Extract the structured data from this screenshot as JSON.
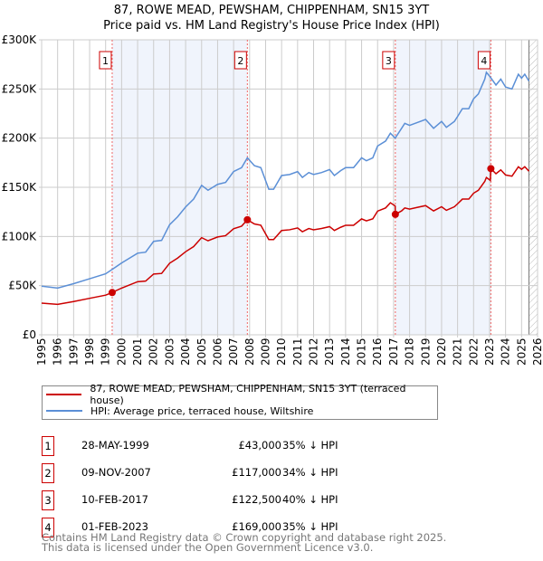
{
  "title": "87, ROWE MEAD, PEWSHAM, CHIPPENHAM, SN15 3YT",
  "subtitle": "Price paid vs. HM Land Registry's House Price Index (HPI)",
  "chart_data": {
    "type": "line",
    "xlim": [
      1995,
      2026
    ],
    "ylim": [
      0,
      300000
    ],
    "grid": true,
    "yticks": [
      0,
      50000,
      100000,
      150000,
      200000,
      250000,
      300000
    ],
    "ytick_labels": [
      "£0",
      "£50K",
      "£100K",
      "£150K",
      "£200K",
      "£250K",
      "£300K"
    ],
    "xticks": [
      1995,
      1996,
      1997,
      1998,
      1999,
      2000,
      2001,
      2002,
      2003,
      2004,
      2005,
      2006,
      2007,
      2008,
      2009,
      2010,
      2011,
      2012,
      2013,
      2014,
      2015,
      2016,
      2017,
      2018,
      2019,
      2020,
      2021,
      2022,
      2023,
      2024,
      2025,
      2026
    ],
    "forecast_start": 2025.46,
    "shaded_ranges": [
      [
        1999.41,
        2007.86
      ],
      [
        2017.11,
        2023.08
      ]
    ],
    "series": [
      {
        "name": "87, ROWE MEAD, PEWSHAM, CHIPPENHAM, SN15 3YT (terraced house)",
        "color": "#cc0000",
        "points": [
          [
            1995,
            32.2
          ],
          [
            1996,
            30.9
          ],
          [
            1997,
            33.8
          ],
          [
            1998,
            37.1
          ],
          [
            1999,
            40.3
          ],
          [
            1999.41,
            43
          ],
          [
            2000,
            47.5
          ],
          [
            2001,
            54
          ],
          [
            2001.5,
            54.6
          ],
          [
            2002,
            61.8
          ],
          [
            2002.5,
            62.4
          ],
          [
            2003,
            72.8
          ],
          [
            2003.5,
            78
          ],
          [
            2004,
            84.5
          ],
          [
            2004.5,
            89.7
          ],
          [
            2005,
            98.8
          ],
          [
            2005.4,
            95.6
          ],
          [
            2006,
            99.5
          ],
          [
            2006.5,
            100.8
          ],
          [
            2007,
            107.9
          ],
          [
            2007.5,
            110.5
          ],
          [
            2007.86,
            117
          ],
          [
            2008.3,
            112.7
          ],
          [
            2008.7,
            111.4
          ],
          [
            2009.2,
            96.9
          ],
          [
            2009.5,
            96.9
          ],
          [
            2010,
            106.1
          ],
          [
            2010.5,
            106.8
          ],
          [
            2011,
            108.7
          ],
          [
            2011.3,
            104.8
          ],
          [
            2011.7,
            108.1
          ],
          [
            2012,
            106.8
          ],
          [
            2012.5,
            108.1
          ],
          [
            2013,
            110
          ],
          [
            2013.3,
            106.1
          ],
          [
            2013.7,
            109.4
          ],
          [
            2014,
            111.4
          ],
          [
            2014.5,
            111.4
          ],
          [
            2015,
            117.9
          ],
          [
            2015.3,
            115.9
          ],
          [
            2015.7,
            117.9
          ],
          [
            2016,
            125.8
          ],
          [
            2016.5,
            129
          ],
          [
            2016.8,
            134.3
          ],
          [
            2017.1,
            131
          ],
          [
            2017.11,
            122.5
          ],
          [
            2017.5,
            126
          ],
          [
            2017.7,
            129
          ],
          [
            2018,
            127.8
          ],
          [
            2018.5,
            129.6
          ],
          [
            2019,
            131.4
          ],
          [
            2019.5,
            126
          ],
          [
            2020,
            130.2
          ],
          [
            2020.3,
            126.6
          ],
          [
            2020.8,
            130.2
          ],
          [
            2021,
            133.2
          ],
          [
            2021.3,
            138
          ],
          [
            2021.7,
            138
          ],
          [
            2022,
            144
          ],
          [
            2022.3,
            147
          ],
          [
            2022.7,
            156
          ],
          [
            2022.8,
            160
          ],
          [
            2023.05,
            157
          ],
          [
            2023.08,
            169
          ],
          [
            2023.4,
            163.8
          ],
          [
            2023.7,
            167.7
          ],
          [
            2024,
            162.5
          ],
          [
            2024.4,
            161.3
          ],
          [
            2024.8,
            170.9
          ],
          [
            2025,
            168.3
          ],
          [
            2025.2,
            170.9
          ],
          [
            2025.46,
            166.4
          ]
        ]
      },
      {
        "name": "HPI: Average price, terraced house, Wiltshire",
        "color": "#5b8fd6",
        "points": [
          [
            1995,
            49.5
          ],
          [
            1996,
            47.5
          ],
          [
            1997,
            52
          ],
          [
            1998,
            57
          ],
          [
            1999,
            62
          ],
          [
            1999.41,
            66.5
          ],
          [
            2000,
            73
          ],
          [
            2001,
            83
          ],
          [
            2001.5,
            84
          ],
          [
            2002,
            95
          ],
          [
            2002.5,
            96
          ],
          [
            2003,
            112
          ],
          [
            2003.5,
            120
          ],
          [
            2004,
            130
          ],
          [
            2004.5,
            138
          ],
          [
            2005,
            152
          ],
          [
            2005.4,
            147
          ],
          [
            2006,
            153
          ],
          [
            2006.5,
            155
          ],
          [
            2007,
            166
          ],
          [
            2007.5,
            170
          ],
          [
            2007.86,
            180
          ],
          [
            2008.3,
            172
          ],
          [
            2008.7,
            170
          ],
          [
            2009.2,
            148
          ],
          [
            2009.5,
            148
          ],
          [
            2010,
            162
          ],
          [
            2010.5,
            163
          ],
          [
            2011,
            166
          ],
          [
            2011.3,
            160
          ],
          [
            2011.7,
            165
          ],
          [
            2012,
            163
          ],
          [
            2012.5,
            165
          ],
          [
            2013,
            168
          ],
          [
            2013.3,
            162
          ],
          [
            2013.7,
            167
          ],
          [
            2014,
            170
          ],
          [
            2014.5,
            170
          ],
          [
            2015,
            180
          ],
          [
            2015.3,
            177
          ],
          [
            2015.7,
            180
          ],
          [
            2016,
            192
          ],
          [
            2016.5,
            197
          ],
          [
            2016.8,
            205
          ],
          [
            2017.1,
            200
          ],
          [
            2017.5,
            210
          ],
          [
            2017.7,
            215
          ],
          [
            2018,
            213
          ],
          [
            2018.5,
            216
          ],
          [
            2019,
            219
          ],
          [
            2019.5,
            210
          ],
          [
            2020,
            217
          ],
          [
            2020.3,
            211
          ],
          [
            2020.8,
            217
          ],
          [
            2021,
            222
          ],
          [
            2021.3,
            230
          ],
          [
            2021.7,
            230
          ],
          [
            2022,
            240
          ],
          [
            2022.3,
            245
          ],
          [
            2022.7,
            260
          ],
          [
            2022.8,
            267
          ],
          [
            2023.05,
            262
          ],
          [
            2023.4,
            254
          ],
          [
            2023.7,
            260
          ],
          [
            2024,
            252
          ],
          [
            2024.4,
            250
          ],
          [
            2024.8,
            265
          ],
          [
            2025,
            261
          ],
          [
            2025.2,
            265
          ],
          [
            2025.46,
            258
          ]
        ]
      }
    ],
    "y_units": "thousands GBP",
    "sales": [
      {
        "label": "1",
        "x": 1999.41,
        "price": 43000
      },
      {
        "label": "2",
        "x": 2007.86,
        "price": 117000
      },
      {
        "label": "3",
        "x": 2017.11,
        "price": 122500
      },
      {
        "label": "4",
        "x": 2023.08,
        "price": 169000
      }
    ]
  },
  "legend": {
    "property": "87, ROWE MEAD, PEWSHAM, CHIPPENHAM, SN15 3YT (terraced house)",
    "hpi": "HPI: Average price, terraced house, Wiltshire"
  },
  "sales_table": [
    {
      "num": "1",
      "date": "28-MAY-1999",
      "price": "£43,000",
      "delta": "35% ↓ HPI"
    },
    {
      "num": "2",
      "date": "09-NOV-2007",
      "price": "£117,000",
      "delta": "34% ↓ HPI"
    },
    {
      "num": "3",
      "date": "10-FEB-2017",
      "price": "£122,500",
      "delta": "40% ↓ HPI"
    },
    {
      "num": "4",
      "date": "01-FEB-2023",
      "price": "£169,000",
      "delta": "35% ↓ HPI"
    }
  ],
  "footer": {
    "line1": "Contains HM Land Registry data © Crown copyright and database right 2025.",
    "line2": "This data is licensed under the Open Government Licence v3.0."
  }
}
